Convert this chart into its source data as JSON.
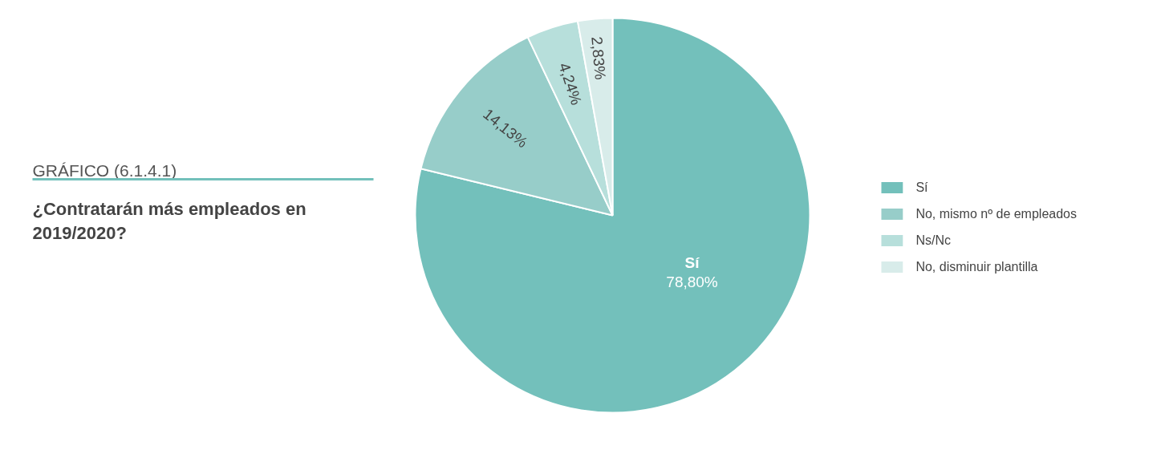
{
  "chart_data": {
    "type": "pie",
    "title": "GRÁFICO (6.1.4.1)",
    "subtitle": "¿Contratarán más empleados en 2019/2020?",
    "categories": [
      "Sí",
      "No, mismo nº de empleados",
      "Ns/Nc",
      "No, disminuir plantilla"
    ],
    "values": [
      78.8,
      14.13,
      4.24,
      2.83
    ],
    "colors": [
      "#73c0bb",
      "#97cdc9",
      "#b7dfdb",
      "#d8ecea"
    ],
    "value_labels": [
      "Sí\n78,80%",
      "14,13%",
      "4,24%",
      "2,83%"
    ],
    "legend": "right"
  }
}
